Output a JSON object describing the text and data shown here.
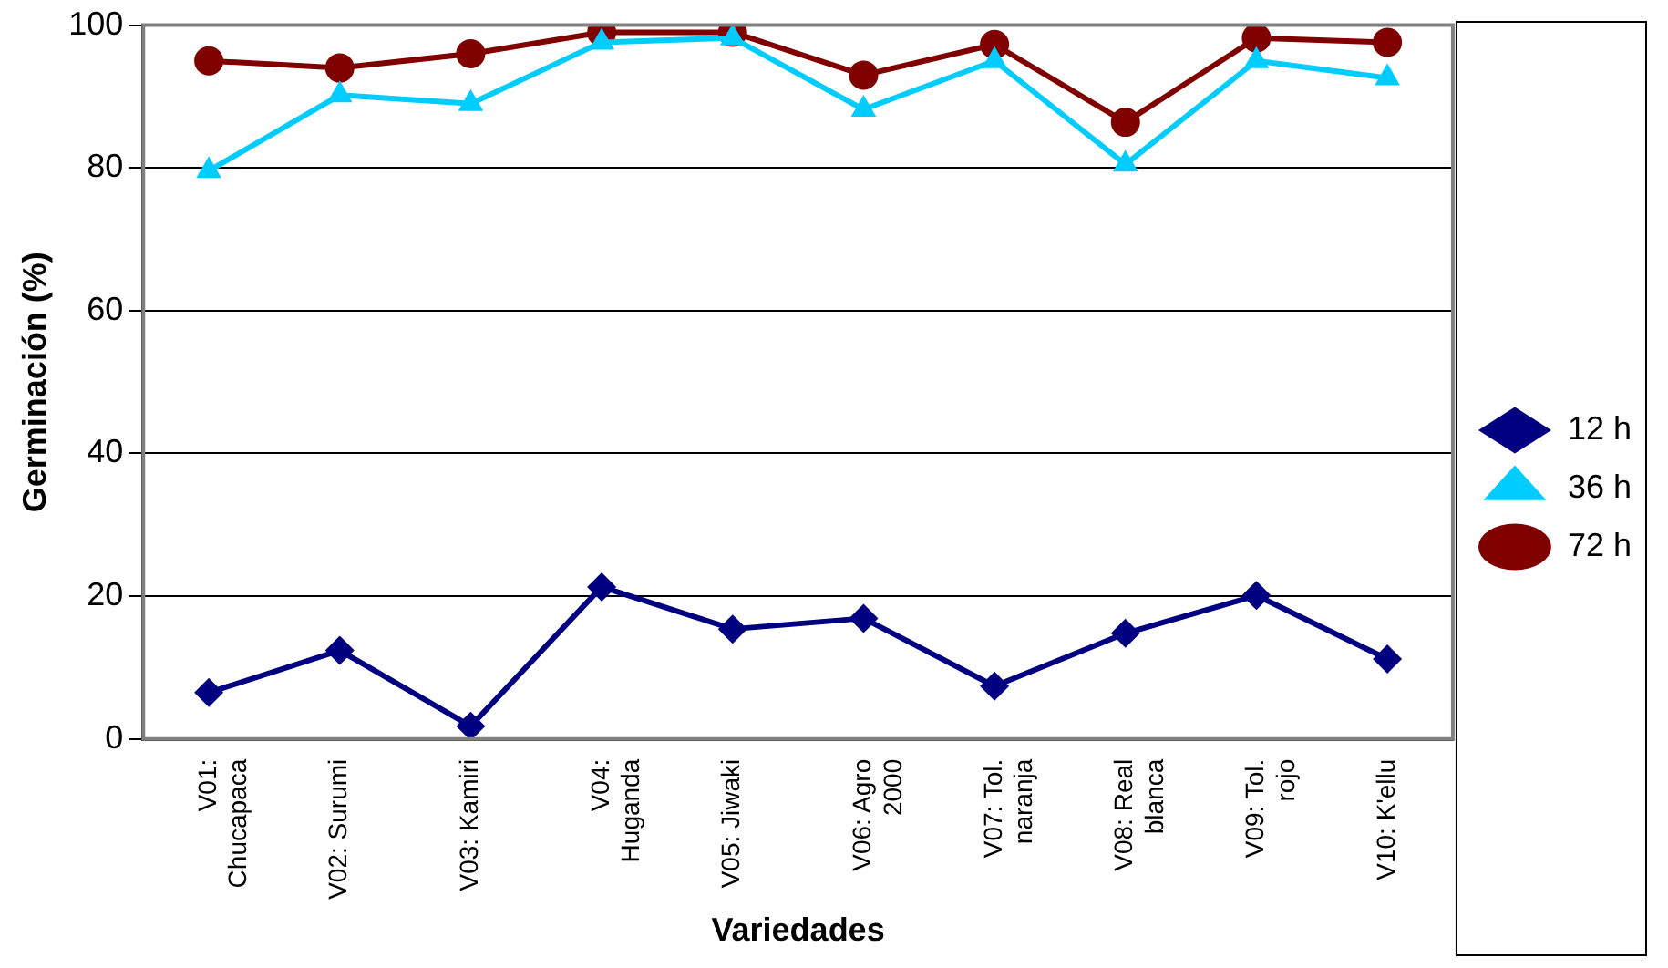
{
  "chart_data": {
    "type": "line",
    "xlabel": "Variedades",
    "ylabel": "Germinación (%)",
    "categories": [
      "V01: Chucapaca",
      "V02: Surumi",
      "V03: Kamiri",
      "V04: Huganda",
      "V05: Jiwaki",
      "V06: Agro 2000",
      "V07: Tol. naranja",
      "V08: Real blanca",
      "V09: Tol. rojo",
      "V10: K'ellu"
    ],
    "series": [
      {
        "name": "12 h",
        "color": "#000080",
        "marker": "diamond",
        "values": [
          6.5,
          12.4,
          1.8,
          21.3,
          15.4,
          16.9,
          7.4,
          14.8,
          20.1,
          11.2
        ]
      },
      {
        "name": "36 h",
        "color": "#00ccff",
        "marker": "triangle",
        "values": [
          79.6,
          90.2,
          89,
          97.6,
          98.2,
          88.2,
          95,
          80.5,
          95,
          92.6
        ]
      },
      {
        "name": "72 h",
        "color": "#800000",
        "marker": "circle",
        "values": [
          95,
          94,
          96,
          99,
          99,
          93,
          97.3,
          86.4,
          98.2,
          97.6
        ]
      }
    ],
    "ylim": [
      0,
      100
    ],
    "yticks": [
      0,
      20,
      40,
      60,
      80,
      100
    ],
    "grid": "y",
    "legend": "right",
    "line_style": "solid"
  }
}
